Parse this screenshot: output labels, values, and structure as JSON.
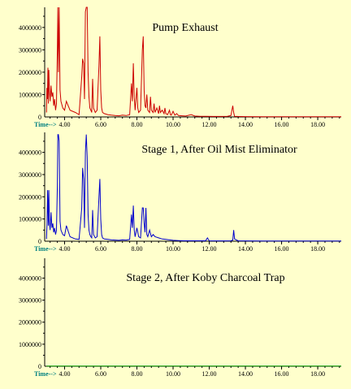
{
  "chart_data": [
    {
      "type": "line",
      "title": "Pump Exhaust",
      "xlabel": "Time-->",
      "color": "#cc0000",
      "xlim": [
        2.9,
        19.3
      ],
      "ylim": [
        0,
        4900000
      ],
      "x_ticks": [
        "4.00",
        "6.00",
        "8.00",
        "10.00",
        "12.00",
        "14.00",
        "16.00",
        "18.00"
      ],
      "y_ticks": [
        "1000000",
        "2000000",
        "3000000",
        "4000000"
      ],
      "series": [
        {
          "x": [
            3.0,
            3.02,
            3.05,
            3.08,
            3.1,
            3.13,
            3.16,
            3.2,
            3.25,
            3.3,
            3.35,
            3.4,
            3.45,
            3.5,
            3.55,
            3.6,
            3.63,
            3.66,
            3.7,
            3.75,
            3.8,
            3.9,
            4.0,
            4.1,
            4.3,
            4.6,
            4.8,
            4.95,
            5.0,
            5.05,
            5.1,
            5.15,
            5.2,
            5.25,
            5.3,
            5.35,
            5.4,
            5.45,
            5.5,
            5.55,
            5.6,
            5.7,
            5.8,
            5.9,
            5.95,
            6.0,
            6.05,
            6.1,
            6.2,
            6.4,
            6.6,
            6.8,
            7.0,
            7.2,
            7.4,
            7.6,
            7.7,
            7.75,
            7.8,
            7.85,
            7.9,
            8.0,
            8.05,
            8.1,
            8.2,
            8.3,
            8.35,
            8.4,
            8.45,
            8.5,
            8.55,
            8.6,
            8.7,
            8.75,
            8.8,
            8.9,
            8.95,
            9.0,
            9.1,
            9.2,
            9.25,
            9.3,
            9.4,
            9.5,
            9.55,
            9.6,
            9.7,
            9.8,
            9.85,
            9.9,
            10.0,
            10.1,
            10.2,
            10.3,
            10.5,
            10.7,
            11.0,
            11.2,
            11.5,
            11.8,
            12.2,
            12.6,
            13.0,
            13.2,
            13.3,
            13.35,
            13.4,
            13.6,
            14.0,
            15.0,
            16.0,
            17.0,
            18.0,
            19.0,
            19.3
          ],
          "y": [
            200000,
            1300000,
            800000,
            2200000,
            600000,
            2100000,
            1200000,
            700000,
            1400000,
            900000,
            1100000,
            500000,
            800000,
            300000,
            600000,
            3000000,
            4900000,
            2000000,
            4900000,
            1200000,
            700000,
            400000,
            300000,
            700000,
            300000,
            200000,
            100000,
            1800000,
            2600000,
            2400000,
            800000,
            4700000,
            4900000,
            4900000,
            2000000,
            900000,
            400000,
            300000,
            200000,
            1700000,
            400000,
            200000,
            300000,
            2300000,
            3600000,
            1200000,
            400000,
            200000,
            150000,
            100000,
            80000,
            60000,
            50000,
            80000,
            60000,
            100000,
            1500000,
            700000,
            2400000,
            900000,
            300000,
            1300000,
            400000,
            200000,
            300000,
            3000000,
            3600000,
            1200000,
            500000,
            400000,
            1000000,
            300000,
            200000,
            900000,
            300000,
            200000,
            600000,
            200000,
            400000,
            150000,
            500000,
            200000,
            300000,
            150000,
            400000,
            150000,
            100000,
            300000,
            100000,
            80000,
            250000,
            80000,
            150000,
            60000,
            50000,
            40000,
            100000,
            40000,
            30000,
            30000,
            20000,
            20000,
            30000,
            60000,
            500000,
            200000,
            30000,
            20000,
            15000,
            10000,
            10000,
            10000,
            10000,
            10000,
            10000
          ]
        }
      ]
    },
    {
      "type": "line",
      "title": "Stage 1, After Oil Mist Eliminator",
      "xlabel": "Time-->",
      "color": "#0000cc",
      "xlim": [
        2.9,
        19.3
      ],
      "ylim": [
        0,
        4900000
      ],
      "x_ticks": [
        "4.00",
        "6.00",
        "8.00",
        "10.00",
        "12.00",
        "14.00",
        "16.00",
        "18.00"
      ],
      "y_ticks": [
        "1000000",
        "2000000",
        "3000000",
        "4000000"
      ],
      "series": [
        {
          "x": [
            3.0,
            3.03,
            3.06,
            3.1,
            3.13,
            3.16,
            3.2,
            3.25,
            3.3,
            3.35,
            3.4,
            3.45,
            3.5,
            3.55,
            3.6,
            3.63,
            3.66,
            3.7,
            3.75,
            3.8,
            3.9,
            4.0,
            4.1,
            4.3,
            4.6,
            4.8,
            4.95,
            5.0,
            5.05,
            5.1,
            5.15,
            5.2,
            5.25,
            5.3,
            5.35,
            5.4,
            5.45,
            5.5,
            5.55,
            5.6,
            5.7,
            5.8,
            5.9,
            5.95,
            6.0,
            6.05,
            6.1,
            6.2,
            6.4,
            6.6,
            6.8,
            7.0,
            7.2,
            7.4,
            7.6,
            7.7,
            7.75,
            7.8,
            7.85,
            7.9,
            8.0,
            8.1,
            8.2,
            8.3,
            8.35,
            8.4,
            8.45,
            8.5,
            8.55,
            8.6,
            8.7,
            8.8,
            8.9,
            9.0,
            9.2,
            9.4,
            9.6,
            9.8,
            10.0,
            10.3,
            10.6,
            11.0,
            11.5,
            11.8,
            11.9,
            12.0,
            12.5,
            13.0,
            13.2,
            13.3,
            13.35,
            13.4,
            13.6,
            14.0,
            15.0,
            16.0,
            17.0,
            18.0,
            19.0,
            19.3
          ],
          "y": [
            100000,
            800000,
            2300000,
            700000,
            2300000,
            900000,
            500000,
            1300000,
            600000,
            800000,
            400000,
            600000,
            300000,
            500000,
            2500000,
            4800000,
            4800000,
            4500000,
            900000,
            500000,
            300000,
            250000,
            700000,
            200000,
            100000,
            80000,
            1500000,
            3300000,
            2800000,
            600000,
            4000000,
            4800000,
            3800000,
            1200000,
            500000,
            300000,
            200000,
            150000,
            1400000,
            300000,
            150000,
            200000,
            2000000,
            2800000,
            1000000,
            300000,
            150000,
            100000,
            80000,
            60000,
            50000,
            40000,
            60000,
            50000,
            80000,
            1200000,
            600000,
            1600000,
            500000,
            200000,
            600000,
            200000,
            150000,
            1500000,
            1500000,
            800000,
            400000,
            1500000,
            300000,
            200000,
            500000,
            200000,
            300000,
            200000,
            150000,
            100000,
            80000,
            60000,
            40000,
            30000,
            20000,
            20000,
            20000,
            20000,
            150000,
            20000,
            15000,
            15000,
            20000,
            50000,
            500000,
            100000,
            20000,
            15000,
            10000,
            10000,
            10000,
            10000,
            10000,
            10000
          ]
        }
      ]
    },
    {
      "type": "line",
      "title": "Stage 2, After Koby Charcoal Trap",
      "xlabel": "Time-->",
      "color": "#009900",
      "xlim": [
        2.9,
        19.3
      ],
      "ylim": [
        0,
        4900000
      ],
      "x_ticks": [
        "4.00",
        "6.00",
        "8.00",
        "10.00",
        "12.00",
        "14.00",
        "16.00",
        "18.00"
      ],
      "y_ticks": [
        "1000000",
        "2000000",
        "3000000",
        "4000000"
      ],
      "series": [
        {
          "x": [
            3.0,
            5.0,
            8.0,
            11.0,
            14.0,
            17.0,
            19.3
          ],
          "y": [
            10000,
            10000,
            10000,
            10000,
            10000,
            10000,
            10000
          ]
        }
      ]
    }
  ]
}
